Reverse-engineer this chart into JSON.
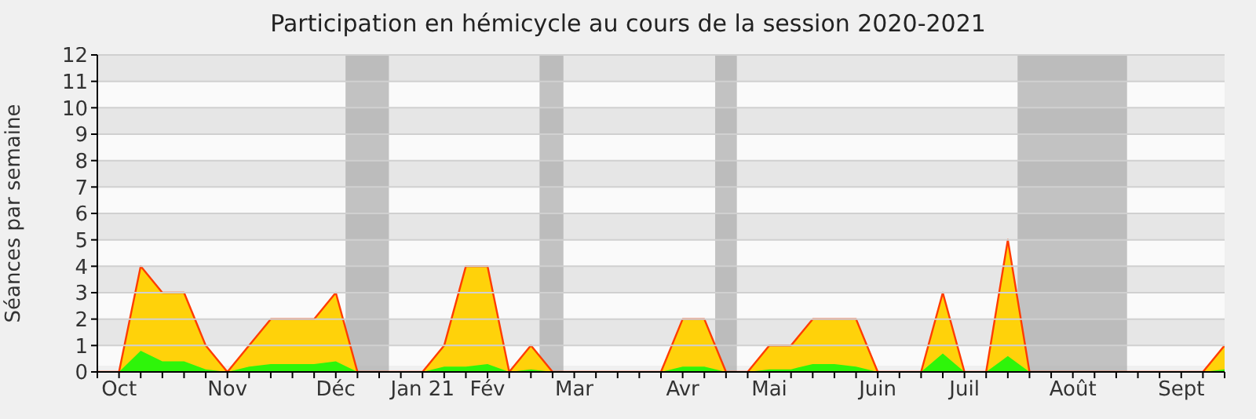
{
  "chart_data": {
    "type": "area",
    "title": "Participation en hémicycle au cours de la session 2020-2021",
    "ylabel": "Séances par semaine",
    "categories": [
      null,
      "Oct",
      null,
      null,
      null,
      null,
      "Nov",
      null,
      null,
      null,
      null,
      "Déc",
      null,
      null,
      null,
      "Jan 21",
      null,
      null,
      "Fév",
      null,
      null,
      null,
      "Mar",
      null,
      null,
      null,
      null,
      "Avr",
      null,
      null,
      null,
      "Mai",
      null,
      null,
      null,
      null,
      "Juin",
      null,
      null,
      null,
      "Juil",
      null,
      null,
      null,
      null,
      "Août",
      null,
      null,
      null,
      null,
      "Sept",
      null,
      null
    ],
    "series": [
      {
        "color": "#ffd20a",
        "values": [
          0,
          0,
          4,
          3,
          3,
          1,
          0,
          1,
          2,
          2,
          2,
          3,
          0,
          0,
          0,
          0,
          1,
          4,
          4,
          0,
          1,
          0,
          0,
          0,
          0,
          0,
          0,
          2,
          2,
          0,
          0,
          1,
          1,
          2,
          2,
          2,
          0,
          0,
          0,
          3,
          0,
          0,
          5,
          0,
          0,
          0,
          0,
          0,
          0,
          0,
          0,
          0,
          1
        ]
      },
      {
        "color": "#2ef50a",
        "values": [
          0,
          0,
          0.8,
          0.4,
          0.4,
          0.1,
          0,
          0.2,
          0.3,
          0.3,
          0.3,
          0.4,
          0,
          0,
          0,
          0,
          0.2,
          0.2,
          0.3,
          0,
          0.1,
          0,
          0,
          0,
          0,
          0,
          0,
          0.2,
          0.2,
          0,
          0,
          0.1,
          0.1,
          0.3,
          0.3,
          0.2,
          0,
          0,
          0,
          0.7,
          0,
          0,
          0.6,
          0,
          0,
          0,
          0,
          0,
          0,
          0,
          0,
          0,
          0.1
        ]
      }
    ],
    "ylim": [
      0,
      12
    ],
    "yticks": [
      0,
      1,
      2,
      3,
      4,
      5,
      6,
      7,
      8,
      9,
      10,
      11,
      12
    ],
    "grid": "y",
    "legend": false
  }
}
